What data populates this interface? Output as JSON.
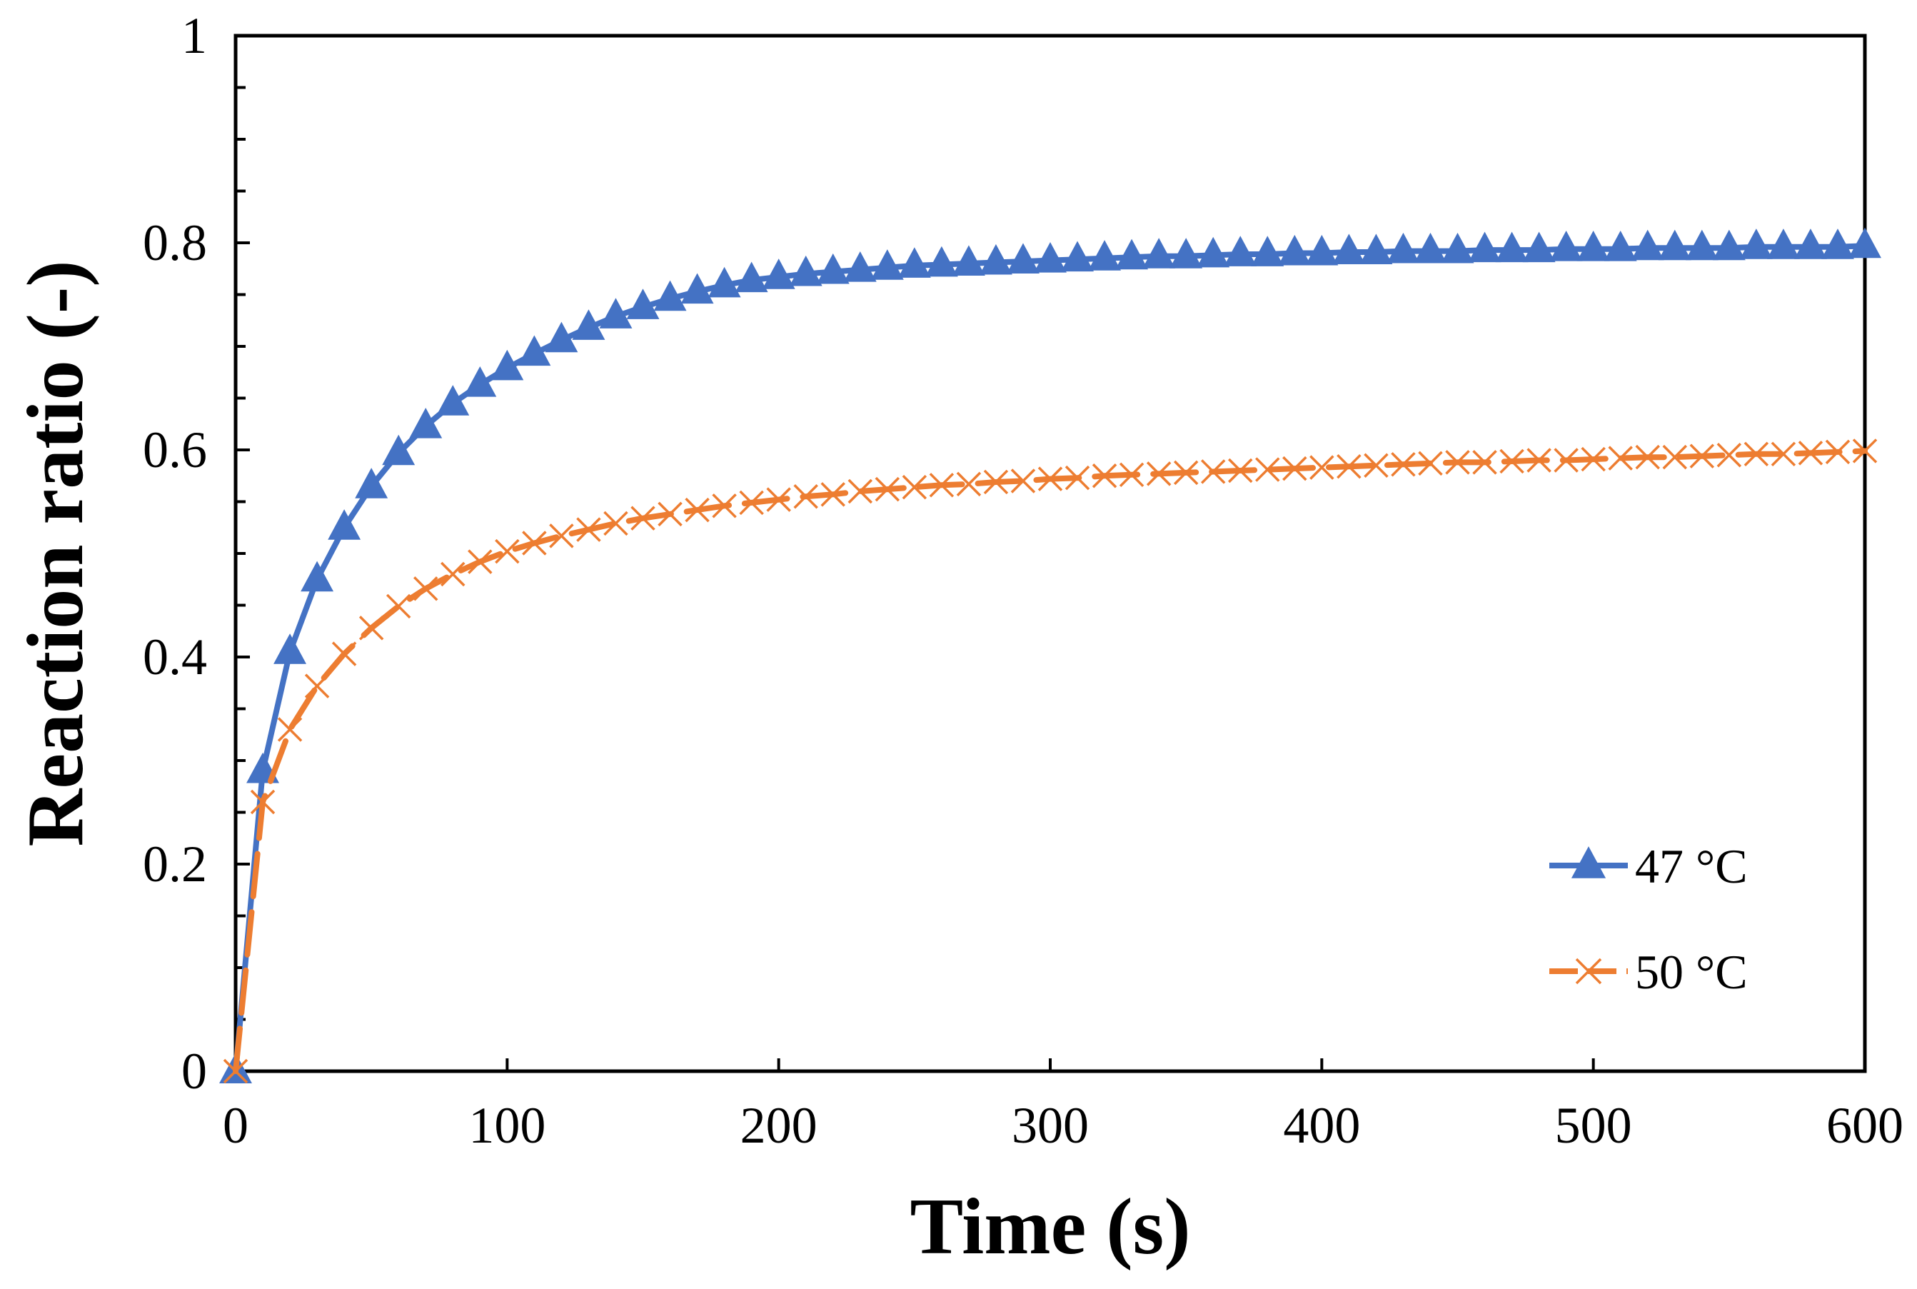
{
  "chart_data": {
    "type": "line",
    "title": "",
    "xlabel": "Time (s)",
    "ylabel": "Reaction ratio (-)",
    "xlim": [
      0,
      600
    ],
    "ylim": [
      0,
      1
    ],
    "xticks": [
      0,
      100,
      200,
      300,
      400,
      500,
      600
    ],
    "xtick_labels": [
      "0",
      "100",
      "200",
      "300",
      "400",
      "500",
      "600"
    ],
    "yticks": [
      0,
      0.2,
      0.4,
      0.6,
      0.8,
      1
    ],
    "ytick_labels": [
      "0",
      "0.2",
      "0.4",
      "0.6",
      "0.8",
      "1"
    ],
    "y_minor_step": 0.05,
    "grid": false,
    "legend_position": "bottom-right",
    "series": [
      {
        "name": "47 °C",
        "color": "#4472C4",
        "line_style": "solid",
        "marker": "triangle",
        "x": [
          0,
          10,
          20,
          30,
          40,
          50,
          60,
          70,
          80,
          90,
          100,
          110,
          120,
          130,
          140,
          150,
          160,
          170,
          180,
          190,
          200,
          210,
          220,
          230,
          240,
          250,
          260,
          270,
          280,
          290,
          300,
          310,
          320,
          330,
          340,
          350,
          360,
          370,
          380,
          390,
          400,
          410,
          420,
          430,
          440,
          450,
          460,
          470,
          480,
          490,
          500,
          510,
          520,
          530,
          540,
          550,
          560,
          570,
          580,
          590,
          600
        ],
        "values": [
          0,
          0.29,
          0.405,
          0.475,
          0.525,
          0.565,
          0.597,
          0.623,
          0.645,
          0.663,
          0.679,
          0.693,
          0.706,
          0.718,
          0.729,
          0.738,
          0.746,
          0.753,
          0.759,
          0.764,
          0.767,
          0.77,
          0.772,
          0.774,
          0.776,
          0.778,
          0.779,
          0.78,
          0.781,
          0.782,
          0.783,
          0.784,
          0.785,
          0.786,
          0.787,
          0.787,
          0.788,
          0.789,
          0.789,
          0.79,
          0.79,
          0.791,
          0.791,
          0.792,
          0.792,
          0.792,
          0.793,
          0.793,
          0.793,
          0.794,
          0.794,
          0.794,
          0.795,
          0.795,
          0.795,
          0.795,
          0.796,
          0.796,
          0.796,
          0.796,
          0.797
        ]
      },
      {
        "name": "50 °C",
        "color": "#ED7D31",
        "line_style": "dashed",
        "marker": "x",
        "x": [
          0,
          10,
          20,
          30,
          40,
          50,
          60,
          70,
          80,
          90,
          100,
          110,
          120,
          130,
          140,
          150,
          160,
          170,
          180,
          190,
          200,
          210,
          220,
          230,
          240,
          250,
          260,
          270,
          280,
          290,
          300,
          310,
          320,
          330,
          340,
          350,
          360,
          370,
          380,
          390,
          400,
          410,
          420,
          430,
          440,
          450,
          460,
          470,
          480,
          490,
          500,
          510,
          520,
          530,
          540,
          550,
          560,
          570,
          580,
          590,
          600
        ],
        "values": [
          0,
          0.26,
          0.33,
          0.372,
          0.403,
          0.428,
          0.449,
          0.466,
          0.48,
          0.492,
          0.502,
          0.51,
          0.517,
          0.523,
          0.529,
          0.534,
          0.538,
          0.542,
          0.546,
          0.549,
          0.552,
          0.555,
          0.557,
          0.56,
          0.562,
          0.564,
          0.566,
          0.567,
          0.569,
          0.57,
          0.572,
          0.573,
          0.575,
          0.576,
          0.577,
          0.578,
          0.579,
          0.58,
          0.581,
          0.582,
          0.583,
          0.584,
          0.585,
          0.586,
          0.587,
          0.588,
          0.588,
          0.589,
          0.59,
          0.59,
          0.591,
          0.592,
          0.593,
          0.593,
          0.594,
          0.595,
          0.596,
          0.596,
          0.597,
          0.598,
          0.599
        ]
      }
    ]
  }
}
